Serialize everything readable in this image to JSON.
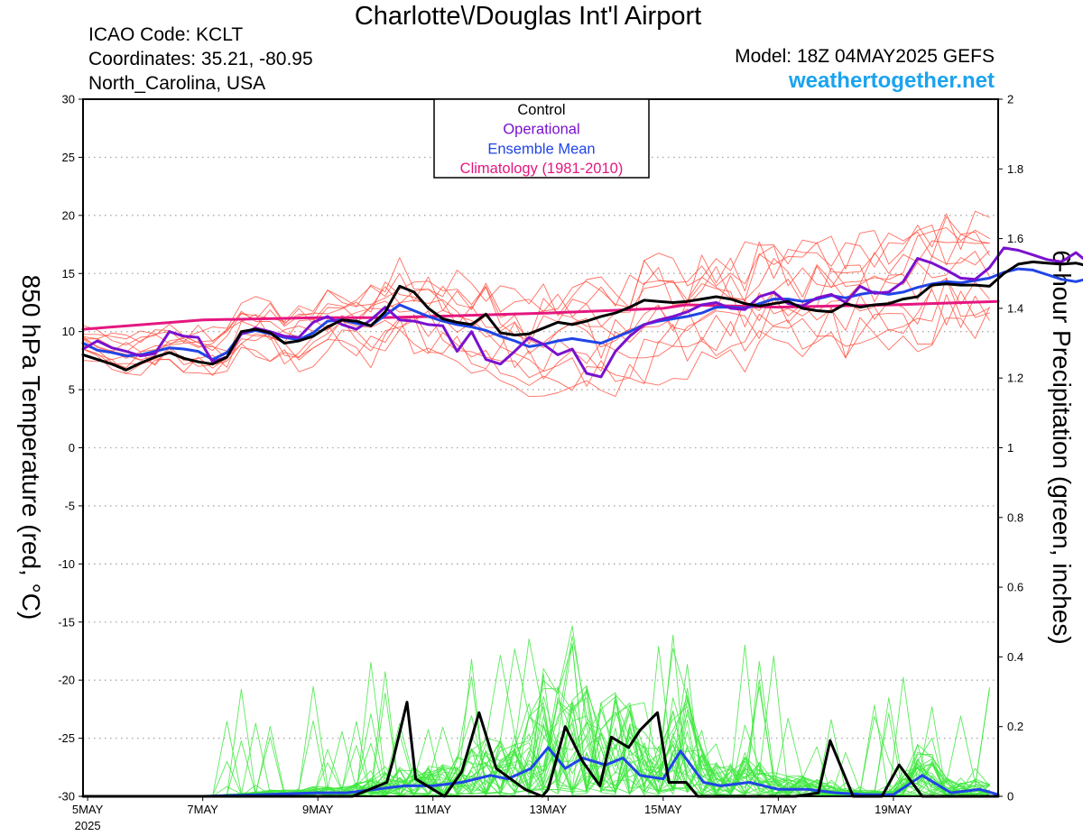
{
  "header": {
    "title": "Charlotte\\/Douglas Int'l Airport",
    "icao": "ICAO Code: KCLT",
    "coordinates": "Coordinates: 35.21, -80.95",
    "region": "North_Carolina, USA",
    "model": "Model: 18Z 04MAY2025 GEFS",
    "site": "weathertogether.net"
  },
  "colors": {
    "members_temp": "#ff4a3a",
    "members_precip": "#3ee83e",
    "control": "#000000",
    "operational": "#7a10cf",
    "ensemble_mean": "#2045e6",
    "climatology": "#e5177f",
    "site": "#1aa3ef"
  },
  "chart_data": {
    "type": "line",
    "ylabel": "850 hPa Temperature (red, °C)",
    "y2label": "6-hour Precipitation (green, inches)",
    "x_range_days": [
      4.92,
      20.82
    ],
    "ylim": [
      -30,
      30
    ],
    "y2lim": [
      0,
      2
    ],
    "yticks": [
      "30",
      "25",
      "20",
      "15",
      "10",
      "5",
      "0",
      "-5",
      "-10",
      "-15",
      "-20",
      "-25",
      "-30"
    ],
    "y2ticks": [
      "2",
      "1.8",
      "1.6",
      "1.4",
      "1.2",
      "1",
      "0.8",
      "0.6",
      "0.4",
      "0.2",
      "0"
    ],
    "xticks": [
      {
        "label": "5MAY",
        "sub": "2025",
        "day": 5
      },
      {
        "label": "7MAY",
        "sub": "",
        "day": 7
      },
      {
        "label": "9MAY",
        "sub": "",
        "day": 9
      },
      {
        "label": "11MAY",
        "sub": "",
        "day": 11
      },
      {
        "label": "13MAY",
        "sub": "",
        "day": 13
      },
      {
        "label": "15MAY",
        "sub": "",
        "day": 15
      },
      {
        "label": "17MAY",
        "sub": "",
        "day": 17
      },
      {
        "label": "19MAY",
        "sub": "",
        "day": 19
      }
    ],
    "grid": true,
    "legend": {
      "placement": "top-center",
      "entries": [
        {
          "label": "Control",
          "color": "#000000"
        },
        {
          "label": "Operational",
          "color": "#7a10cf"
        },
        {
          "label": "Ensemble Mean",
          "color": "#2045e6"
        },
        {
          "label": "Climatology (1981-2010)",
          "color": "#e5177f"
        }
      ]
    },
    "temperature": {
      "control": {
        "x_start_day": 4.92,
        "step_days": 0.25,
        "values": [
          8.0,
          7.6,
          7.2,
          6.7,
          7.3,
          7.8,
          8.2,
          7.7,
          7.4,
          7.2,
          7.8,
          10.0,
          10.2,
          9.9,
          9.0,
          9.2,
          9.6,
          10.4,
          11.0,
          10.9,
          10.5,
          11.7,
          13.9,
          13.4,
          12.0,
          11.1,
          10.8,
          10.6,
          11.5,
          9.9,
          9.7,
          9.8,
          10.3,
          10.8,
          10.6,
          10.9,
          11.3,
          11.6,
          12.1,
          12.7,
          12.6,
          12.5,
          12.6,
          12.8,
          13.0,
          12.8,
          12.4,
          12.2,
          12.4,
          12.6,
          12.0,
          11.8,
          11.7,
          12.4,
          12.1,
          12.3,
          12.4,
          12.8,
          13.0,
          14.0,
          14.1,
          14.0,
          14.0,
          13.9,
          15.0,
          15.8,
          16.0,
          15.9,
          15.8,
          15.9,
          15.6,
          15.7,
          15.9,
          16.3,
          17.0,
          15.8,
          12.0,
          11.8,
          11.6,
          12.0,
          10.2,
          8.1,
          7.9
        ]
      },
      "operational": {
        "x_start_day": 4.92,
        "step_days": 0.25,
        "values": [
          8.5,
          9.2,
          8.6,
          8.3,
          7.9,
          8.1,
          10.0,
          9.6,
          9.5,
          7.4,
          7.8,
          9.8,
          10.3,
          10.0,
          9.6,
          9.5,
          10.8,
          11.3,
          10.6,
          10.2,
          11.0,
          12.1,
          11.0,
          10.9,
          10.6,
          10.5,
          8.3,
          10.0,
          7.6,
          7.2,
          8.3,
          9.5,
          8.9,
          8.0,
          8.5,
          6.4,
          6.1,
          8.3,
          9.6,
          10.6,
          11.0,
          11.3,
          11.7,
          12.3,
          12.5,
          12.0,
          11.9,
          13.0,
          13.4,
          12.4,
          12.2,
          12.9,
          13.2,
          12.5,
          13.9,
          13.3,
          13.4,
          14.3,
          16.3,
          15.9,
          15.3,
          14.6,
          14.5,
          15.5,
          17.2,
          17.0,
          16.6,
          16.2,
          16.0,
          16.8,
          15.8,
          17.6,
          18.8,
          18.4,
          18.9,
          19.4,
          18.8,
          20.1,
          21.0,
          21.5,
          20.5,
          19.0,
          22.0,
          18.3,
          20.5,
          19.0,
          18.2,
          17.3
        ]
      },
      "ensemble_mean": {
        "x_start_day": 4.92,
        "step_days": 0.25,
        "values": [
          9.0,
          8.4,
          8.2,
          7.9,
          8.0,
          8.3,
          8.6,
          8.5,
          8.3,
          7.6,
          8.2,
          9.8,
          10.1,
          9.8,
          9.5,
          9.3,
          9.9,
          10.9,
          11.0,
          10.7,
          10.5,
          11.4,
          12.3,
          11.8,
          11.3,
          10.9,
          10.6,
          10.4,
          10.1,
          9.6,
          9.2,
          8.7,
          8.9,
          9.2,
          9.4,
          9.2,
          9.0,
          9.5,
          10.0,
          10.6,
          10.9,
          11.1,
          11.3,
          11.6,
          12.1,
          12.1,
          12.0,
          12.4,
          12.8,
          12.8,
          12.6,
          12.8,
          13.1,
          12.9,
          13.2,
          13.4,
          13.2,
          13.4,
          13.8,
          14.1,
          14.3,
          14.2,
          14.4,
          14.6,
          15.1,
          15.4,
          15.3,
          14.9,
          14.5,
          14.3,
          14.6,
          15.3,
          15.0,
          14.7,
          14.9,
          15.2,
          15.0,
          15.4,
          15.6,
          15.1,
          14.9,
          15.3,
          15.8,
          15.3,
          15.0,
          14.8,
          14.7,
          14.6
        ]
      },
      "climatology": {
        "x_days": [
          4.92,
          7,
          9,
          10.1,
          11,
          13,
          15,
          15.4,
          17,
          19,
          20.82
        ],
        "values": [
          10.2,
          11.0,
          11.2,
          11.2,
          11.3,
          11.6,
          12.0,
          12.3,
          12.1,
          12.3,
          12.6
        ]
      },
      "members_spread": [
        -2.6,
        -1.8,
        -1.0,
        0.6,
        1.4,
        2.3,
        3.0
      ]
    },
    "precipitation": {
      "control": {
        "x_days": [
          4.92,
          9.2,
          9.6,
          10.2,
          10.3,
          10.55,
          10.7,
          11.0,
          11.2,
          11.5,
          11.8,
          12.1,
          12.6,
          12.9,
          13.0,
          13.3,
          13.6,
          13.9,
          14.1,
          14.4,
          14.6,
          14.9,
          15.1,
          15.4,
          15.6,
          15.9,
          16.4,
          17.3,
          17.7,
          17.9,
          18.3,
          18.8,
          19.1,
          19.5,
          19.9,
          20.6,
          20.82
        ],
        "values": [
          0,
          0,
          0,
          0.04,
          0.1,
          0.27,
          0.05,
          0.02,
          0,
          0.07,
          0.24,
          0.08,
          0.02,
          0,
          0.02,
          0.2,
          0.1,
          0.03,
          0.17,
          0.14,
          0.19,
          0.24,
          0.04,
          0.04,
          0,
          0,
          0,
          0,
          0.01,
          0.16,
          0,
          0,
          0.09,
          0,
          0,
          0,
          0
        ]
      },
      "ensemble_mean": {
        "x_days": [
          4.92,
          7,
          8,
          9,
          9.5,
          10,
          10.5,
          11,
          11.5,
          12,
          12.3,
          12.7,
          13.0,
          13.3,
          13.6,
          14.0,
          14.3,
          14.6,
          15.0,
          15.3,
          15.7,
          16.0,
          16.5,
          17.0,
          17.5,
          18.0,
          18.5,
          19.0,
          19.5,
          20.0,
          20.5,
          20.82
        ],
        "values": [
          0,
          0,
          0.005,
          0.01,
          0.01,
          0.02,
          0.03,
          0.03,
          0.04,
          0.06,
          0.05,
          0.08,
          0.14,
          0.08,
          0.11,
          0.09,
          0.11,
          0.06,
          0.05,
          0.13,
          0.04,
          0.03,
          0.04,
          0.02,
          0.02,
          0.01,
          0.005,
          0.005,
          0.06,
          0.01,
          0.02,
          0.005
        ]
      }
    }
  }
}
